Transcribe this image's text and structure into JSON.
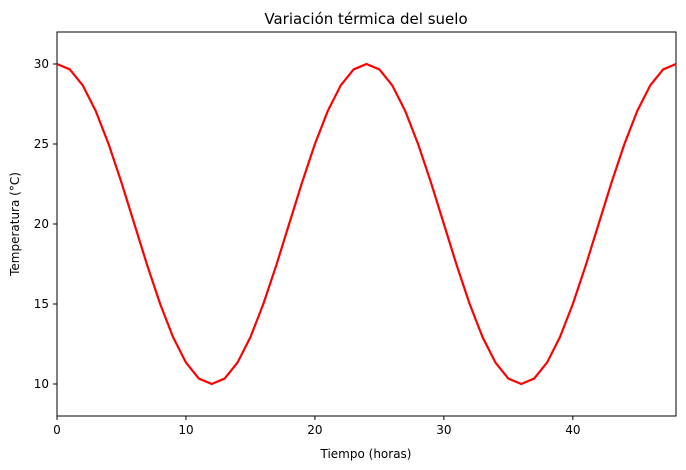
{
  "chart_data": {
    "type": "line",
    "title": "Variación térmica del suelo",
    "xlabel": "Tiempo (horas)",
    "ylabel": "Temperatura (°C)",
    "xlim": [
      0,
      48
    ],
    "ylim": [
      8,
      32
    ],
    "xticks": [
      0,
      10,
      20,
      30,
      40
    ],
    "yticks": [
      10,
      15,
      20,
      25,
      30
    ],
    "grid": false,
    "series": [
      {
        "color": "#ff0000",
        "x": [
          0,
          1,
          2,
          3,
          4,
          5,
          6,
          7,
          8,
          9,
          10,
          11,
          12,
          13,
          14,
          15,
          16,
          17,
          18,
          19,
          20,
          21,
          22,
          23,
          24,
          25,
          26,
          27,
          28,
          29,
          30,
          31,
          32,
          33,
          34,
          35,
          36,
          37,
          38,
          39,
          40,
          41,
          42,
          43,
          44,
          45,
          46,
          47,
          48
        ],
        "y": [
          30.0,
          29.66,
          28.66,
          27.07,
          25.0,
          22.59,
          20.0,
          17.41,
          15.0,
          12.93,
          11.34,
          10.34,
          10.0,
          10.34,
          11.34,
          12.93,
          15.0,
          17.41,
          20.0,
          22.59,
          25.0,
          27.07,
          28.66,
          29.66,
          30.0,
          29.66,
          28.66,
          27.07,
          25.0,
          22.59,
          20.0,
          17.41,
          15.0,
          12.93,
          11.34,
          10.34,
          10.0,
          10.34,
          11.34,
          12.93,
          15.0,
          17.41,
          20.0,
          22.59,
          25.0,
          27.07,
          28.66,
          29.66,
          30.0
        ]
      }
    ]
  }
}
